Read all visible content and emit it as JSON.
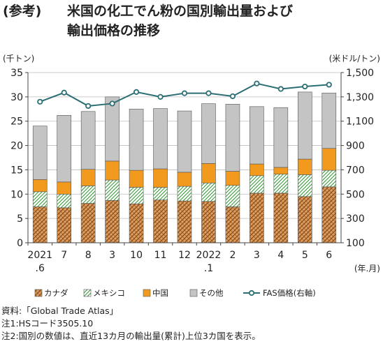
{
  "title": {
    "tag": "(参考)",
    "line1": "米国の化工でん粉の国別輸出量および",
    "line2": "輸出価格の推移"
  },
  "chart_data": {
    "type": "bar",
    "stacked": true,
    "y_left_label": "(千トン)",
    "y_right_label": "(米ドル/トン)",
    "x_unit_label": "(年.月)",
    "ylim_left": [
      0,
      35
    ],
    "yticks_left": [
      0,
      5,
      10,
      15,
      20,
      25,
      30,
      35
    ],
    "ylim_right": [
      100,
      1500
    ],
    "yticks_right": [
      "100",
      "300",
      "500",
      "700",
      "900",
      "1,100",
      "1,300",
      "1,500"
    ],
    "yticks_right_values": [
      100,
      300,
      500,
      700,
      900,
      1100,
      1300,
      1500
    ],
    "categories": [
      {
        "top": "2021",
        "bottom": ".6"
      },
      {
        "top": "7",
        "bottom": ""
      },
      {
        "top": "8",
        "bottom": ""
      },
      {
        "top": "3",
        "bottom": ""
      },
      {
        "top": "10",
        "bottom": ""
      },
      {
        "top": "11",
        "bottom": ""
      },
      {
        "top": "12",
        "bottom": ""
      },
      {
        "top": "2022",
        "bottom": ".1"
      },
      {
        "top": "2",
        "bottom": ""
      },
      {
        "top": "3",
        "bottom": ""
      },
      {
        "top": "4",
        "bottom": ""
      },
      {
        "top": "5",
        "bottom": ""
      },
      {
        "top": "6",
        "bottom": ""
      }
    ],
    "series": [
      {
        "name": "カナダ",
        "pattern": "brick",
        "color": "#b86b22",
        "values": [
          7.4,
          7.2,
          8.1,
          8.7,
          8.0,
          8.8,
          8.6,
          8.5,
          7.4,
          10.2,
          10.2,
          9.5,
          11.5
        ]
      },
      {
        "name": "メキシコ",
        "pattern": "diag",
        "color": "#3a9a3a",
        "values": [
          3.1,
          2.8,
          3.6,
          4.2,
          3.4,
          2.6,
          3.0,
          3.8,
          4.4,
          3.6,
          3.9,
          4.5,
          3.4
        ]
      },
      {
        "name": "中国",
        "pattern": "solid",
        "color": "#f29a1e",
        "values": [
          2.5,
          2.5,
          3.4,
          3.9,
          3.5,
          3.8,
          2.9,
          4.0,
          2.9,
          2.4,
          1.4,
          3.2,
          4.5
        ]
      },
      {
        "name": "その他",
        "pattern": "solid",
        "color": "#c4c4c4",
        "values": [
          11.0,
          13.7,
          11.9,
          13.2,
          12.6,
          12.4,
          12.6,
          12.3,
          13.8,
          11.8,
          12.3,
          13.8,
          11.4
        ]
      }
    ],
    "line_series": {
      "name": "FAS価格(右軸)",
      "color": "#2b6e73",
      "axis": "right",
      "values": [
        1260,
        1335,
        1225,
        1245,
        1340,
        1300,
        1330,
        1330,
        1305,
        1410,
        1365,
        1385,
        1400
      ]
    },
    "grid": "horizontal",
    "legend_position": "bottom"
  },
  "notes": [
    "資料:「Global Trade Atlas」",
    "注1:HSコード3505.10",
    "注2:国別の数値は、直近13カ月の輸出量(累計)上位3カ国を表示。"
  ]
}
